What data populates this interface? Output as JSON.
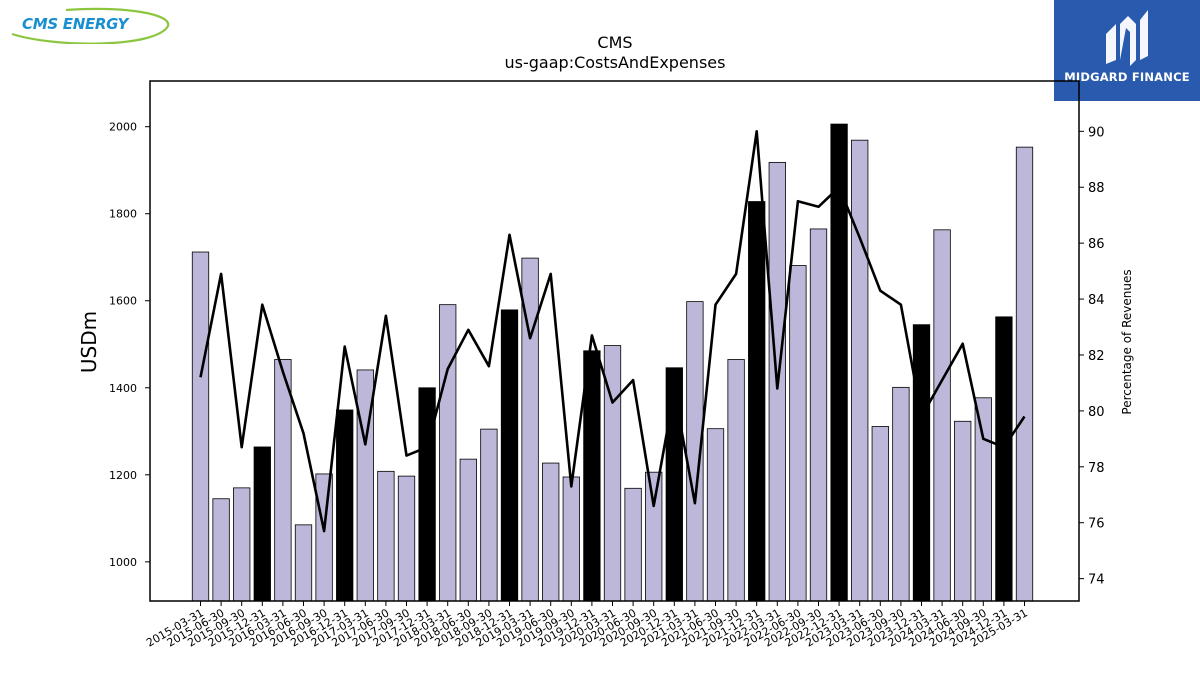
{
  "logos": {
    "left": "CMS ENERGY",
    "right": "MIDGARD FINANCE"
  },
  "colors": {
    "bar_normal": "#bdb8d9",
    "bar_highlight": "#000000",
    "line": "#000000",
    "logo_left_text": "#1a8fd0",
    "logo_left_swoosh": "#8cc63f",
    "logo_right_bg": "#2a5aae"
  },
  "chart_data": {
    "type": "bar",
    "title": "CMS",
    "subtitle": "us-gaap:CostsAndExpenses",
    "ylabel": "USDm",
    "y2label": "Percentage of Revenues",
    "ylim": [
      910,
      2105
    ],
    "y2lim": [
      73.2,
      91.8
    ],
    "yticks": [
      1000,
      1200,
      1400,
      1600,
      1800,
      2000
    ],
    "y2ticks": [
      74,
      76,
      78,
      80,
      82,
      84,
      86,
      88,
      90
    ],
    "grid": false,
    "categories": [
      "2015-03-31",
      "2015-06-30",
      "2015-09-30",
      "2015-12-31",
      "2016-03-31",
      "2016-06-30",
      "2016-09-30",
      "2016-12-31",
      "2017-03-31",
      "2017-06-30",
      "2017-09-30",
      "2017-12-31",
      "2018-03-31",
      "2018-06-30",
      "2018-09-30",
      "2018-12-31",
      "2019-03-31",
      "2019-06-30",
      "2019-09-30",
      "2019-12-31",
      "2020-03-31",
      "2020-06-30",
      "2020-09-30",
      "2020-12-31",
      "2021-03-31",
      "2021-06-30",
      "2021-09-30",
      "2021-12-31",
      "2022-03-31",
      "2022-06-30",
      "2022-09-30",
      "2022-12-31",
      "2023-03-31",
      "2023-06-30",
      "2023-09-30",
      "2023-12-31",
      "2024-03-31",
      "2024-06-30",
      "2024-09-30",
      "2024-12-31",
      "2025-03-31"
    ],
    "series": [
      {
        "name": "CostsAndExpenses",
        "type": "bar",
        "values": [
          1712,
          1145,
          1170,
          1264,
          1465,
          1085,
          1202,
          1349,
          1441,
          1208,
          1197,
          1400,
          1591,
          1236,
          1305,
          1579,
          1698,
          1227,
          1195,
          1485,
          1497,
          1169,
          1206,
          1446,
          1598,
          1306,
          1465,
          1828,
          1918,
          1681,
          1765,
          2006,
          1969,
          1311,
          1401,
          1545,
          1763,
          1323,
          1377,
          1563,
          1953
        ],
        "highlighted_indices": [
          3,
          7,
          11,
          15,
          19,
          23,
          27,
          31,
          35,
          39
        ]
      },
      {
        "name": "Percentage of Revenues",
        "type": "line",
        "axis": "right",
        "values": [
          81.2,
          84.9,
          78.7,
          83.8,
          81.4,
          79.2,
          75.7,
          82.3,
          78.8,
          83.4,
          78.4,
          78.7,
          81.5,
          82.9,
          81.6,
          86.3,
          82.6,
          84.9,
          77.3,
          82.7,
          80.3,
          81.1,
          76.6,
          80.7,
          76.7,
          83.8,
          84.9,
          90.0,
          80.8,
          87.5,
          87.3,
          88.0,
          86.2,
          84.3,
          83.8,
          79.8,
          81.1,
          82.4,
          79.0,
          78.7,
          79.8
        ]
      }
    ]
  }
}
